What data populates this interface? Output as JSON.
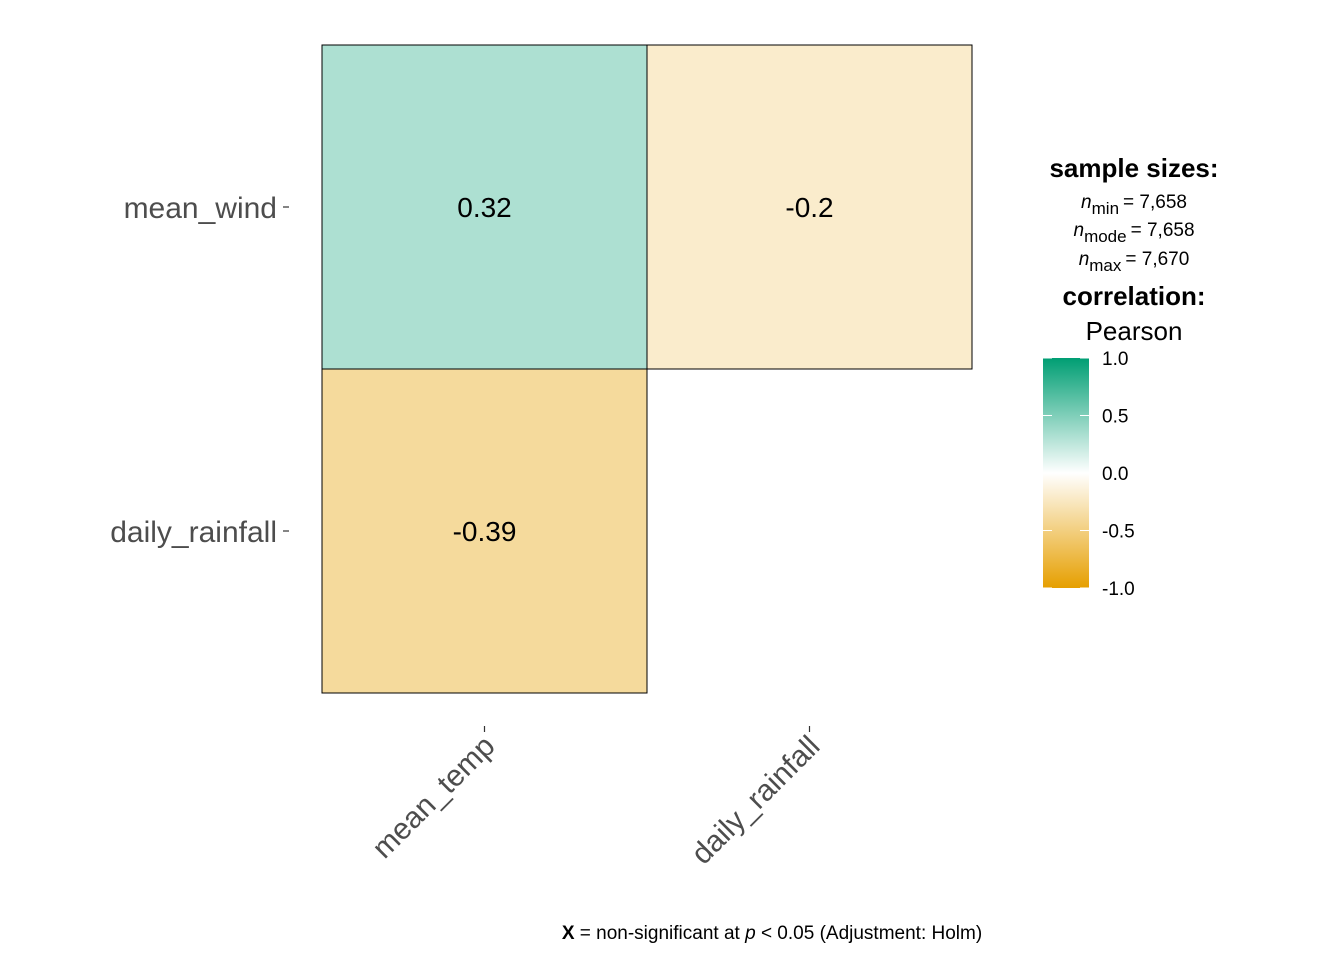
{
  "chart_data": {
    "type": "heatmap",
    "title": "",
    "x_categories": [
      "mean_temp",
      "daily_rainfall"
    ],
    "y_categories": [
      "mean_wind",
      "daily_rainfall"
    ],
    "cells": [
      {
        "x": "mean_temp",
        "y": "mean_wind",
        "value": 0.32,
        "label": "0.32"
      },
      {
        "x": "daily_rainfall",
        "y": "mean_wind",
        "value": -0.2,
        "label": "-0.2"
      },
      {
        "x": "mean_temp",
        "y": "daily_rainfall",
        "value": -0.39,
        "label": "-0.39"
      }
    ],
    "colors": {
      "low": "#e69f00",
      "mid": "#ffffff",
      "high": "#009e73"
    },
    "legend": {
      "sample_sizes_title": "sample sizes:",
      "n_symbol": "n",
      "n_min_sub": "min",
      "n_min_value": "= 7,658",
      "n_mode_sub": "mode",
      "n_mode_value": "= 7,658",
      "n_max_sub": "max",
      "n_max_value": "= 7,670",
      "correlation_title": "correlation:",
      "correlation_method": "Pearson",
      "ticks": [
        "1.0",
        "0.5",
        "0.0",
        "-0.5",
        "-1.0"
      ],
      "range": [
        -1,
        1
      ]
    },
    "caption": {
      "bold": "X",
      "text1": "= non-significant at",
      "italic": "p",
      "text2": "< 0.05 (Adjustment: Holm)"
    }
  }
}
